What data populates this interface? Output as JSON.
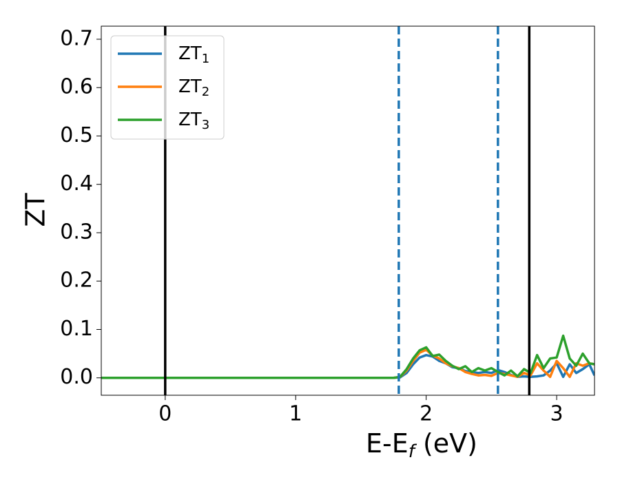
{
  "chart_data": {
    "type": "line",
    "y_label": "ZT",
    "x_label": {
      "text": "E-E",
      "sub": "f",
      "after": " (eV)"
    },
    "xlim": [
      -0.49,
      3.29
    ],
    "ylim": [
      -0.036,
      0.727
    ],
    "xticks": [
      0,
      1,
      2,
      3
    ],
    "yticks": [
      {
        "value": 0,
        "label": "0.0"
      },
      0.1,
      0.2,
      0.3,
      0.4,
      0.5,
      0.6,
      0.7
    ],
    "grid": false,
    "legend": "upper left",
    "vlines": [
      {
        "x": 0,
        "color": "#000000",
        "dashed": false
      },
      {
        "x": 1.79,
        "color": "#1f77b4",
        "dashed": true
      },
      {
        "x": 2.55,
        "color": "#1f77b4",
        "dashed": true
      },
      {
        "x": 2.79,
        "color": "#000000",
        "dashed": false
      }
    ],
    "x": [
      -0.49,
      0,
      0.5,
      1,
      1.5,
      1.75,
      1.8,
      1.85,
      1.9,
      1.95,
      2.0,
      2.05,
      2.1,
      2.15,
      2.2,
      2.25,
      2.3,
      2.35,
      2.4,
      2.45,
      2.5,
      2.55,
      2.6,
      2.65,
      2.7,
      2.75,
      2.8,
      2.85,
      2.9,
      2.95,
      3.0,
      3.05,
      3.1,
      3.15,
      3.2,
      3.25,
      3.29
    ],
    "series": [
      {
        "name": "ZT1",
        "color": "#1f77b4",
        "values": [
          0,
          0,
          0,
          0,
          0,
          0,
          0.001,
          0.01,
          0.028,
          0.042,
          0.047,
          0.044,
          0.035,
          0.03,
          0.022,
          0.02,
          0.014,
          0.012,
          0.01,
          0.012,
          0.01,
          0.016,
          0.012,
          0.006,
          0.002,
          0.003,
          0.002,
          0.003,
          0.005,
          0.015,
          0.03,
          0.002,
          0.028,
          0.01,
          0.018,
          0.028,
          0.005
        ]
      },
      {
        "name": "ZT2",
        "color": "#ff7f0e",
        "values": [
          0,
          0,
          0,
          0,
          0,
          0,
          0.002,
          0.015,
          0.035,
          0.052,
          0.058,
          0.046,
          0.04,
          0.03,
          0.024,
          0.02,
          0.012,
          0.008,
          0.005,
          0.006,
          0.004,
          0.01,
          0.008,
          0.005,
          0.002,
          0.01,
          0.005,
          0.03,
          0.015,
          0.002,
          0.035,
          0.02,
          0.002,
          0.03,
          0.025,
          0.03,
          0.028
        ]
      },
      {
        "name": "ZT3",
        "color": "#2ca02c",
        "values": [
          0,
          0,
          0,
          0,
          0,
          0,
          0.002,
          0.018,
          0.04,
          0.057,
          0.063,
          0.045,
          0.048,
          0.035,
          0.025,
          0.018,
          0.024,
          0.012,
          0.02,
          0.015,
          0.02,
          0.012,
          0.005,
          0.015,
          0.003,
          0.018,
          0.01,
          0.047,
          0.02,
          0.04,
          0.042,
          0.087,
          0.04,
          0.025,
          0.05,
          0.03,
          0.028
        ]
      }
    ]
  }
}
